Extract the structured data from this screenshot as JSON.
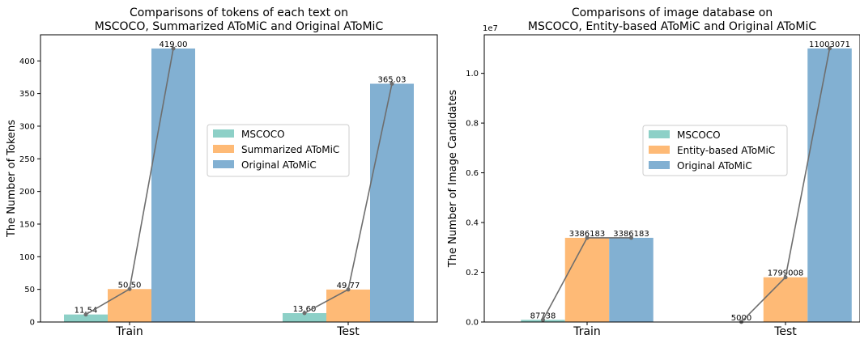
{
  "chart_data": [
    {
      "type": "bar",
      "title_line1": "Comparisons of tokens of each text on",
      "title_line2": "MSCOCO, Summarized AToMiC and Original AToMiC",
      "xlabel": "",
      "ylabel": "The Number of Tokens",
      "categories": [
        "Train",
        "Test"
      ],
      "series": [
        {
          "name": "MSCOCO",
          "values": [
            11.54,
            13.6
          ],
          "labels": [
            "11.54",
            "13.60"
          ],
          "color": "#8dd0c7"
        },
        {
          "name": "Summarized AToMiC",
          "values": [
            50.5,
            49.77
          ],
          "labels": [
            "50.50",
            "49.77"
          ],
          "color": "#feba76"
        },
        {
          "name": "Original AToMiC",
          "values": [
            419.0,
            365.03
          ],
          "labels": [
            "419.00",
            "365.03"
          ],
          "color": "#82b0d2"
        }
      ],
      "ylim": [
        0,
        440
      ],
      "yticks": [
        0,
        50,
        100,
        150,
        200,
        250,
        300,
        350,
        400
      ],
      "ytick_labels": [
        "0",
        "50",
        "100",
        "150",
        "200",
        "250",
        "300",
        "350",
        "400"
      ],
      "scale_label": "",
      "legend_position": "center-right",
      "line_color": "#6e6e6e"
    },
    {
      "type": "bar",
      "title_line1": "Comparisons of image database on",
      "title_line2": "MSCOCO, Entity-based AToMiC and Original AToMiC",
      "xlabel": "",
      "ylabel": "The Number of Image Candidates",
      "categories": [
        "Train",
        "Test"
      ],
      "series": [
        {
          "name": "MSCOCO",
          "values": [
            87738,
            5000
          ],
          "labels": [
            "87738",
            "5000"
          ],
          "color": "#8dd0c7"
        },
        {
          "name": "Entity-based AToMiC",
          "values": [
            3386183,
            1799008
          ],
          "labels": [
            "3386183",
            "1799008"
          ],
          "color": "#feba76"
        },
        {
          "name": "Original AToMiC",
          "values": [
            3386183,
            11003071
          ],
          "labels": [
            "3386183",
            "11003071"
          ],
          "color": "#82b0d2"
        }
      ],
      "ylim": [
        0,
        11550000
      ],
      "yticks": [
        0,
        2000000,
        4000000,
        6000000,
        8000000,
        10000000
      ],
      "ytick_labels": [
        "0.0",
        "0.2",
        "0.4",
        "0.6",
        "0.8",
        "1.0"
      ],
      "scale_label": "1e7",
      "legend_position": "center-right",
      "line_color": "#6e6e6e"
    }
  ]
}
